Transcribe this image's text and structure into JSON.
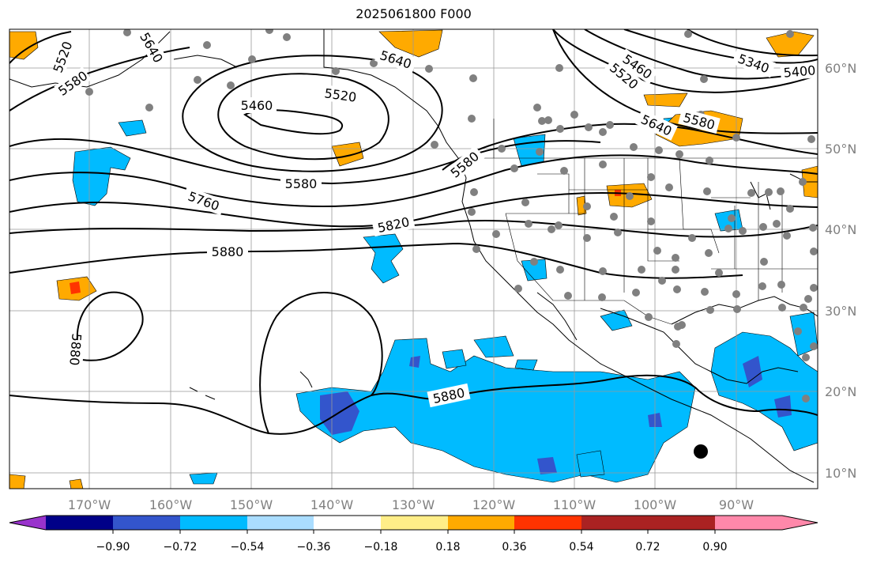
{
  "title": "2025061800 F000",
  "longitude_labels": [
    "170°W",
    "160°W",
    "150°W",
    "140°W",
    "130°W",
    "120°W",
    "110°W",
    "100°W",
    "90°W"
  ],
  "latitude_labels": [
    "60°N",
    "50°N",
    "40°N",
    "30°N",
    "20°N",
    "10°N"
  ],
  "colorbar": {
    "colors": [
      "#9933cc",
      "#000088",
      "#3355cc",
      "#00bbff",
      "#aaddff",
      "#ffffff",
      "#ffee88",
      "#ffaa00",
      "#ff3300",
      "#aa2222",
      "#ff88aa"
    ],
    "tick_labels": [
      "−0.90",
      "−0.72",
      "−0.54",
      "−0.36",
      "−0.18",
      "0.18",
      "0.36",
      "0.54",
      "0.72",
      "0.90"
    ]
  },
  "contour_labels": [
    "5520",
    "5580",
    "5640",
    "5460",
    "5520",
    "5640",
    "5580",
    "5340",
    "5400",
    "5460",
    "5520",
    "5640",
    "5580",
    "5580",
    "5760",
    "5820",
    "5880",
    "5880",
    "5880"
  ]
}
